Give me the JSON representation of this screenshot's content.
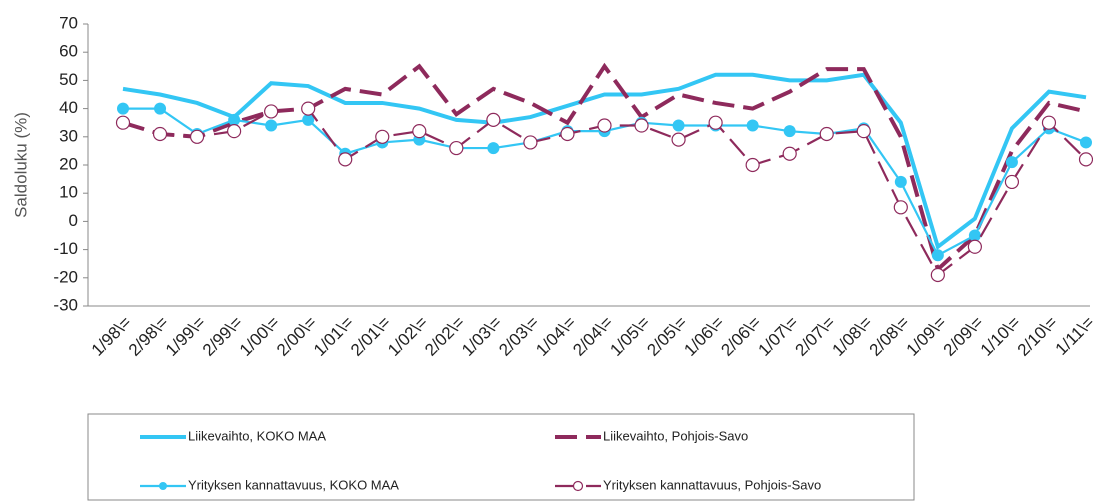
{
  "chart_data": {
    "type": "line",
    "y_label": "Saldoluku (%)",
    "categories": [
      "1/98\\=",
      "2/98\\=",
      "1/99\\=",
      "2/99\\=",
      "1/00\\=",
      "2/00\\=",
      "1/01\\=",
      "2/01\\=",
      "1/02\\=",
      "2/02\\=",
      "1/03\\=",
      "2/03\\=",
      "1/04\\=",
      "2/04\\=",
      "1/05\\=",
      "2/05\\=",
      "1/06\\=",
      "2/06\\=",
      "1/07\\=",
      "2/07\\=",
      "1/08\\=",
      "2/08\\=",
      "1/09\\=",
      "2/09\\=",
      "1/10\\=",
      "2/10\\=",
      "1/11\\="
    ],
    "series": [
      {
        "name": "Liikevaihto, KOKO MAA",
        "color": "#33c6f4",
        "style": "solid",
        "marker": "none",
        "values": [
          47,
          45,
          42,
          37,
          49,
          48,
          42,
          42,
          40,
          36,
          35,
          37,
          41,
          45,
          45,
          47,
          52,
          52,
          50,
          50,
          52,
          35,
          -9,
          1,
          33,
          46,
          44
        ]
      },
      {
        "name": "Liikevaihto, Pohjois-Savo",
        "color": "#8e2a5c",
        "style": "dashed",
        "marker": "none",
        "values": [
          35,
          31,
          30,
          35,
          39,
          40,
          47,
          45,
          55,
          38,
          47,
          42,
          35,
          55,
          37,
          45,
          42,
          40,
          46,
          54,
          54,
          30,
          -17,
          -5,
          25,
          42,
          39
        ]
      },
      {
        "name": "Yrityksen kannattavuus, KOKO MAA",
        "color": "#33c6f4",
        "style": "solid",
        "marker": "circle",
        "values": [
          40,
          40,
          31,
          36,
          34,
          36,
          24,
          28,
          29,
          26,
          26,
          28,
          32,
          32,
          35,
          34,
          34,
          34,
          32,
          31,
          33,
          14,
          -12,
          -5,
          21,
          33,
          28
        ]
      },
      {
        "name": "Yrityksen kannattavuus, Pohjois-Savo",
        "color": "#8e2a5c",
        "style": "dashed",
        "marker": "open-circle",
        "values": [
          35,
          31,
          30,
          32,
          39,
          40,
          22,
          30,
          32,
          26,
          36,
          28,
          31,
          34,
          34,
          29,
          35,
          20,
          24,
          31,
          32,
          5,
          -19,
          -9,
          14,
          35,
          22
        ]
      }
    ],
    "ylim": [
      -30,
      70
    ],
    "yticks": [
      -30,
      -20,
      -10,
      0,
      10,
      20,
      30,
      40,
      50,
      60,
      70
    ],
    "grid": false
  }
}
